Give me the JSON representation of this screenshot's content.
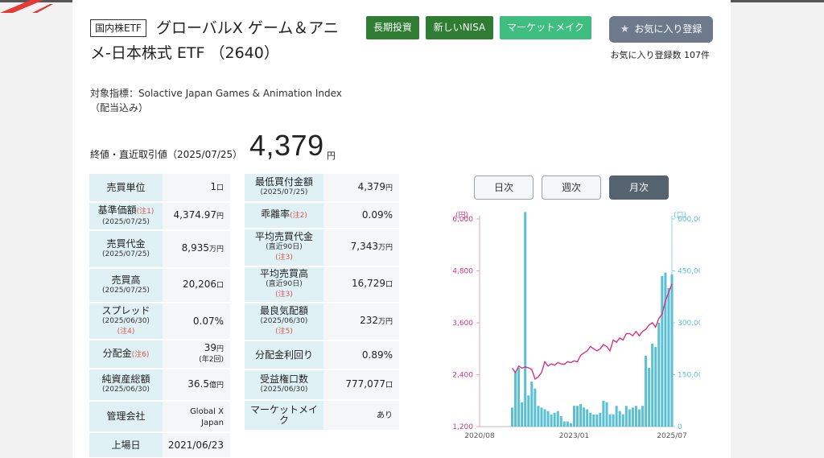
{
  "header": {
    "category_tag": "国内株ETF",
    "title_line1": "グローバルX ゲーム＆アニ",
    "title_line2": "メ-日本株式 ETF （2640）",
    "badges": [
      "長期投資",
      "新しいNISA",
      "マーケットメイク"
    ],
    "favorite_button": "お気に入り登録",
    "favorite_count": "お気に入り登録数 107件"
  },
  "index_text": "対象指標：Solactive Japan Games & Animation Index（配当込み）",
  "price": {
    "label": "終値・直近取引値（2025/07/25）",
    "value": "4,379",
    "unit": "円"
  },
  "left_table": [
    {
      "key": "売買単位",
      "sub": "",
      "note": "",
      "value": "1",
      "unit": "口",
      "value_sub": ""
    },
    {
      "key": "基準価額",
      "sub": "(2025/07/25)",
      "note": "(注1)",
      "value": "4,374.97",
      "unit": "円",
      "value_sub": ""
    },
    {
      "key": "売買代金",
      "sub": "(2025/07/25)",
      "note": "",
      "value": "8,935",
      "unit": "万円",
      "value_sub": ""
    },
    {
      "key": "売買高",
      "sub": "(2025/07/25)",
      "note": "",
      "value": "20,206",
      "unit": "口",
      "value_sub": ""
    },
    {
      "key": "スプレッド",
      "sub": "(2025/06/30)",
      "note": "(注4)",
      "value": "0.07%",
      "unit": "",
      "value_sub": ""
    },
    {
      "key": "分配金",
      "sub": "",
      "note": "(注6)",
      "value": "39",
      "unit": "円",
      "value_sub": "(年2回)"
    },
    {
      "key": "純資産総額",
      "sub": "(2025/06/30)",
      "note": "",
      "value": "36.5",
      "unit": "億円",
      "value_sub": ""
    },
    {
      "key": "管理会社",
      "sub": "",
      "note": "",
      "value": "Global X Japan",
      "unit": "",
      "value_sub": ""
    },
    {
      "key": "上場日",
      "sub": "",
      "note": "",
      "value": "2021/06/23",
      "unit": "",
      "value_sub": ""
    }
  ],
  "mid_table": [
    {
      "key": "最低買付金額",
      "sub": "(2025/07/25)",
      "note": "",
      "value": "4,379",
      "unit": "円"
    },
    {
      "key": "乖離率",
      "sub": "",
      "note": "(注2)",
      "value": "0.09%",
      "unit": ""
    },
    {
      "key": "平均売買代金",
      "sub": "(直近90日)",
      "note": "(注3)",
      "value": "7,343",
      "unit": "万円"
    },
    {
      "key": "平均売買高",
      "sub": "(直近90日)",
      "note": "(注3)",
      "value": "16,729",
      "unit": "口"
    },
    {
      "key": "最良気配額",
      "sub": "(2025/06/30)",
      "note": "(注5)",
      "value": "232",
      "unit": "万円"
    },
    {
      "key": "分配金利回り",
      "sub": "",
      "note": "",
      "value": "0.89%",
      "unit": ""
    },
    {
      "key": "受益権口数",
      "sub": "(2025/06/30)",
      "note": "",
      "value": "777,077",
      "unit": "口"
    },
    {
      "key": "マーケットメイク",
      "sub": "",
      "note": "",
      "value": "あり",
      "unit": ""
    }
  ],
  "period_buttons": [
    "日次",
    "週次",
    "月次"
  ],
  "chart_data": {
    "type": "bar+line",
    "left_axis_label": "(円)",
    "right_axis_label": "(口)",
    "left_ticks": [
      "1,200",
      "2,400",
      "3,600",
      "4,800",
      "6,000"
    ],
    "right_ticks": [
      "0",
      "150,000",
      "300,000",
      "450,000",
      "600,000"
    ],
    "left_ylim": [
      1200,
      6000
    ],
    "right_ylim": [
      0,
      600000
    ],
    "x_ticks": [
      "2020/08",
      "2023/01",
      "2025/07"
    ],
    "x_range": [
      "2020-08",
      "2025-07"
    ],
    "price_color": "#d63384",
    "volume_color": "#5bc0d3",
    "months": [
      "2021-06",
      "2021-07",
      "2021-08",
      "2021-09",
      "2021-10",
      "2021-11",
      "2021-12",
      "2022-01",
      "2022-02",
      "2022-03",
      "2022-04",
      "2022-05",
      "2022-06",
      "2022-07",
      "2022-08",
      "2022-09",
      "2022-10",
      "2022-11",
      "2022-12",
      "2023-01",
      "2023-02",
      "2023-03",
      "2023-04",
      "2023-05",
      "2023-06",
      "2023-07",
      "2023-08",
      "2023-09",
      "2023-10",
      "2023-11",
      "2023-12",
      "2024-01",
      "2024-02",
      "2024-03",
      "2024-04",
      "2024-05",
      "2024-06",
      "2024-07",
      "2024-08",
      "2024-09",
      "2024-10",
      "2024-11",
      "2024-12",
      "2025-01",
      "2025-02",
      "2025-03",
      "2025-04",
      "2025-05",
      "2025-06",
      "2025-07"
    ],
    "series": [
      {
        "name": "",
        "axis": "left",
        "values": [
          2550,
          2450,
          2600,
          2550,
          2580,
          2560,
          2520,
          2300,
          2350,
          2450,
          2700,
          2600,
          2650,
          2620,
          2680,
          2650,
          2640,
          2700,
          2680,
          2720,
          2700,
          2850,
          2900,
          2950,
          3050,
          3000,
          2950,
          3000,
          3100,
          3050,
          2950,
          3200,
          3150,
          3250,
          3200,
          3350,
          3350,
          3300,
          3400,
          3300,
          3400,
          3450,
          3550,
          3600,
          3500,
          3700,
          3800,
          4100,
          4300,
          4500
        ]
      },
      {
        "name": "",
        "axis": "right",
        "values": [
          55000,
          160000,
          170000,
          70000,
          620000,
          90000,
          130000,
          110000,
          60000,
          55000,
          50000,
          45000,
          35000,
          40000,
          45000,
          30000,
          15000,
          15000,
          10000,
          60000,
          60000,
          65000,
          55000,
          50000,
          40000,
          35000,
          35000,
          40000,
          75000,
          70000,
          35000,
          35000,
          60000,
          45000,
          35000,
          60000,
          50000,
          55000,
          60000,
          50000,
          60000,
          205000,
          170000,
          240000,
          230000,
          300000,
          435000,
          445000,
          400000,
          440000
        ]
      }
    ]
  }
}
